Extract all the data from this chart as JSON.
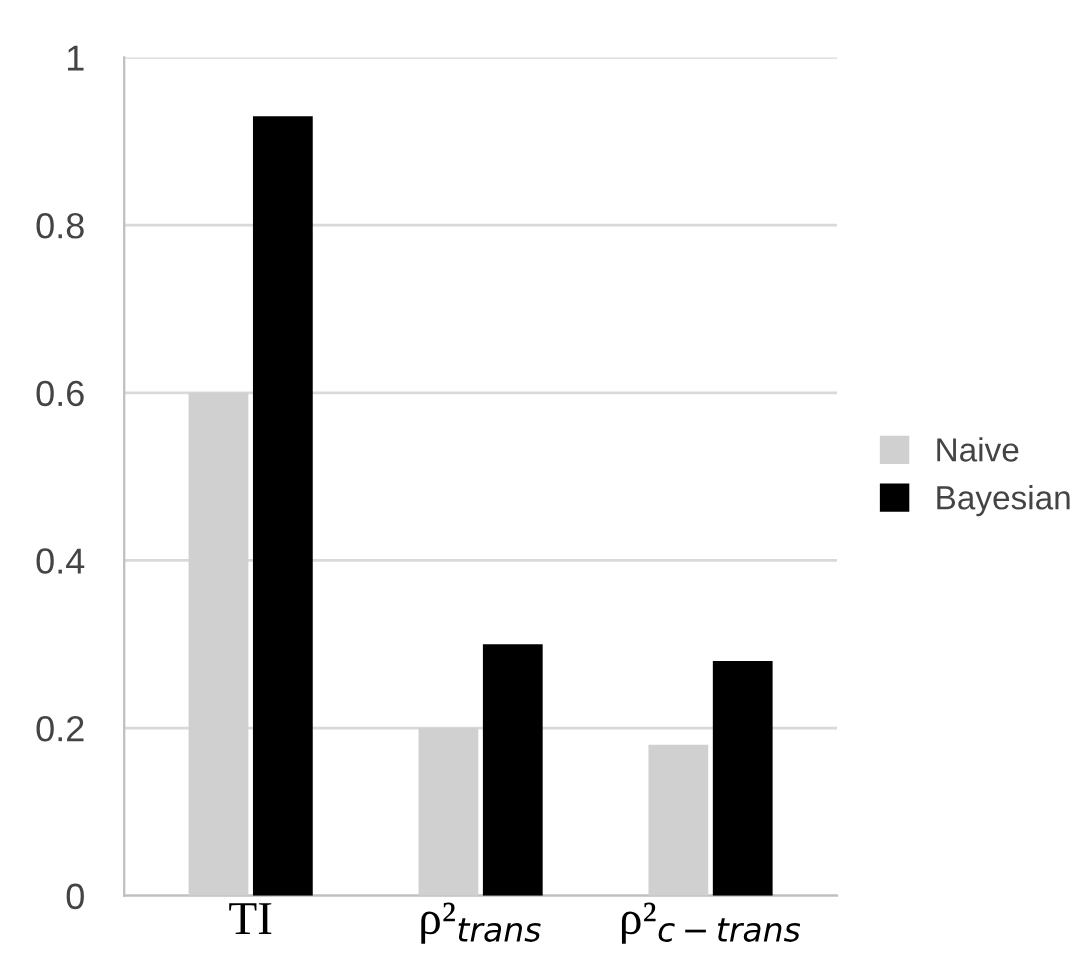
{
  "chart_data": {
    "type": "bar",
    "categories": [
      "TI",
      "ρ²$_{trans}$",
      "ρ²$_{c−trans}$"
    ],
    "series": [
      {
        "name": "Naive",
        "color": "#d0d0d0",
        "values": [
          0.6,
          0.2,
          0.18
        ]
      },
      {
        "name": "Bayesian",
        "color": "#000000",
        "values": [
          0.93,
          0.3,
          0.28
        ]
      }
    ],
    "ylim": [
      0,
      1
    ],
    "yticks": [
      0,
      {
        "value": 0.2,
        "label": "0.2"
      },
      {
        "value": 0.4,
        "label": "0.4"
      },
      {
        "value": 0.6,
        "label": "0.6"
      },
      {
        "value": 0.8,
        "label": "0.8"
      },
      1
    ],
    "grid": "y",
    "legend": "right"
  }
}
